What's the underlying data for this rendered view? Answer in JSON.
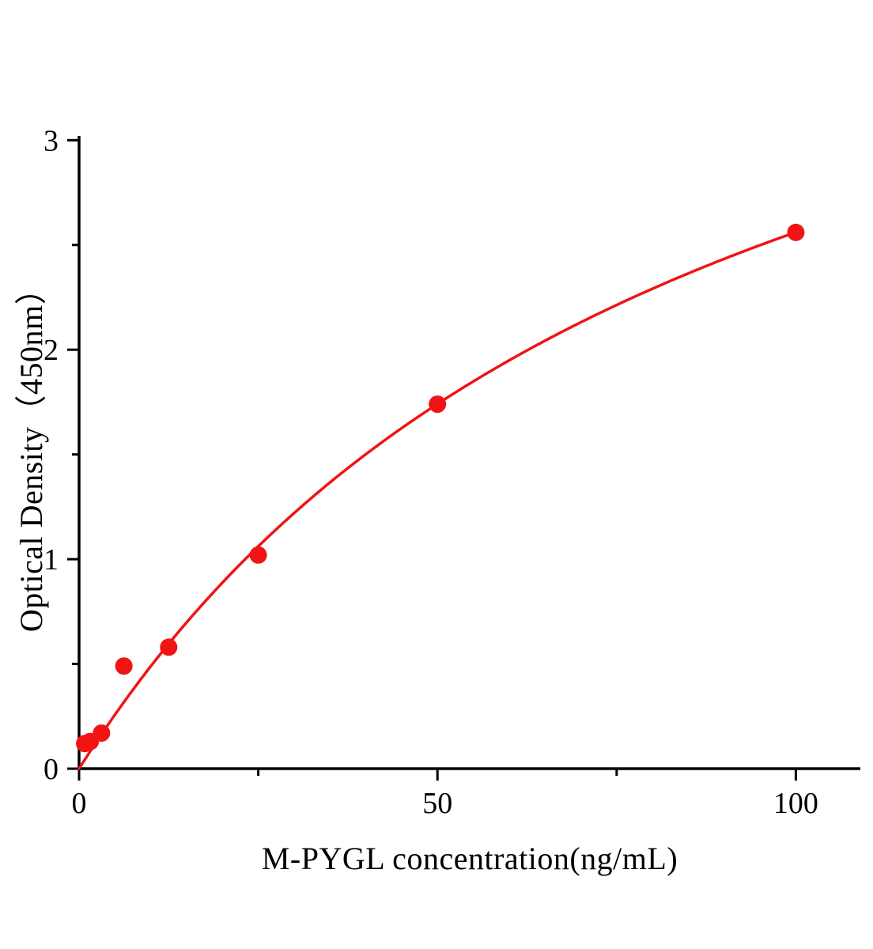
{
  "figure": {
    "background_color": "#ffffff",
    "axis_color": "#000000",
    "accent_color": "#f01414"
  },
  "chart_data": {
    "type": "scatter",
    "title": "",
    "xlabel": "M-PYGL concentration(ng/mL)",
    "ylabel": "Optical Density（450nm）",
    "x": [
      0.78,
      1.56,
      3.125,
      6.25,
      12.5,
      25,
      50,
      100
    ],
    "y": [
      0.12,
      0.13,
      0.17,
      0.49,
      0.58,
      1.02,
      1.74,
      2.56
    ],
    "xlim": [
      0,
      109
    ],
    "ylim": [
      0,
      3.02
    ],
    "x_major_ticks": [
      0,
      50,
      100
    ],
    "x_minor_ticks": [
      25,
      75
    ],
    "y_major_ticks": [
      0,
      1,
      2,
      3
    ],
    "y_minor_ticks": [
      0.5,
      1.5,
      2.5
    ],
    "point_color": "#f01414",
    "line_color": "#f01414",
    "point_radius": 11,
    "fit_curve": {
      "model": "y = vmax * x / (k + x)",
      "vmax": 4.84,
      "k": 89,
      "x_start": 0,
      "x_end": 100
    },
    "grid": false,
    "legend": null
  }
}
